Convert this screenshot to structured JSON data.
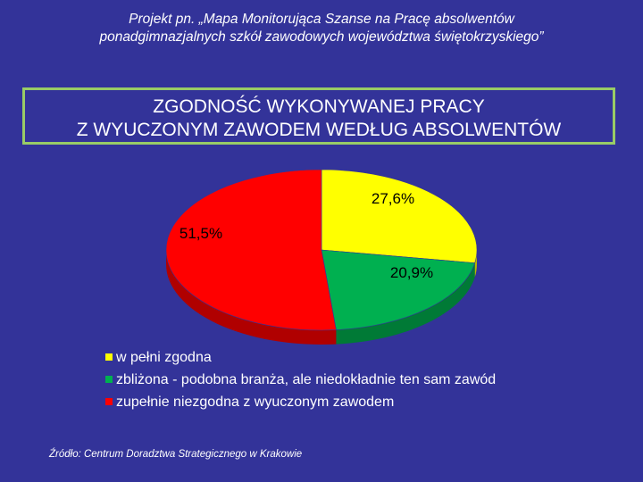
{
  "header": {
    "line1": "Projekt pn. „Mapa Monitorująca Szanse na Pracę absolwentów",
    "line2": "ponadgimnazjalnych szkół zawodowych województwa świętokrzyskiego”"
  },
  "title": {
    "line1": "ZGODNOŚĆ  WYKONYWANEJ  PRACY",
    "line2": "Z  WYUCZONYM  ZAWODEM WEDŁUG ABSOLWENTÓW"
  },
  "source": "Źródło: Centrum Doradztwa Strategicznego w Krakowie",
  "chart_data": {
    "type": "pie",
    "title": "ZGODNOŚĆ  WYKONYWANEJ  PRACY Z  WYUCZONYM  ZAWODEM WEDŁUG ABSOLWENTÓW",
    "legend_position": "bottom-left",
    "slices": [
      {
        "name": "w pełni zgodna",
        "value": 27.6,
        "label": "27,6%",
        "color": "#ffff00",
        "dark": "#b8b800"
      },
      {
        "name": "zbliżona - podobna branża, ale niedokładnie ten sam zawód",
        "value": 20.9,
        "label": "20,9%",
        "color": "#00b050",
        "dark": "#007a36"
      },
      {
        "name": "zupełnie niezgodna z wyuczonym zawodem",
        "value": 51.5,
        "label": "51,5%",
        "color": "#ff0000",
        "dark": "#b00000"
      }
    ]
  }
}
